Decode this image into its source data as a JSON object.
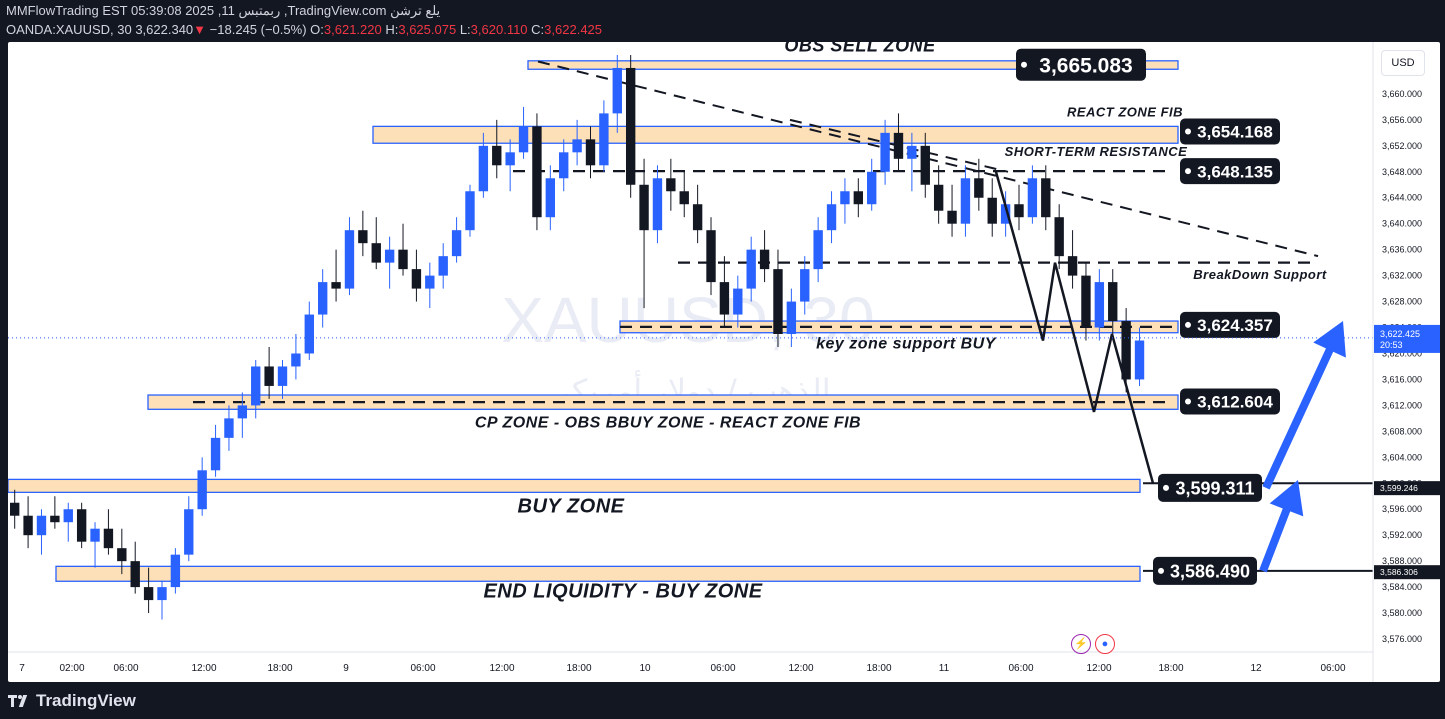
{
  "header": {
    "line1": "MMFlowTrading EST 05:39:08 2025 ,11 ربمتبس ,TradingView.com يلع ترشن",
    "symbol": "OANDA:XAUUSD, 30",
    "last": "3,622.340",
    "change_arrow": "▼",
    "change": "−18.245 (−0.5%)",
    "o_label": "O:",
    "o": "3,621.220",
    "h_label": "H:",
    "h": "3,625.075",
    "l_label": "L:",
    "l": "3,620.110",
    "c_label": "C:",
    "c": "3,622.425"
  },
  "footer": {
    "brand": "TradingView"
  },
  "chart_data": {
    "type": "candlestick",
    "title": "",
    "watermark_symbol": "XAUUSD, 30",
    "watermark_name": "الذهب / دولار أمريكي",
    "currency_button": "USD",
    "ylim": [
      3574,
      3668
    ],
    "y_ticks": [
      "3,576.000",
      "3,580.000",
      "3,584.000",
      "3,588.000",
      "3,592.000",
      "3,596.000",
      "3,600.000",
      "3,604.000",
      "3,608.000",
      "3,612.000",
      "3,616.000",
      "3,620.000",
      "3,624.000",
      "3,628.000",
      "3,632.000",
      "3,636.000",
      "3,640.000",
      "3,644.000",
      "3,648.000",
      "3,652.000",
      "3,656.000",
      "3,660.000",
      "3,664.000"
    ],
    "x_ticks": [
      "7",
      "02:00",
      "06:00",
      "12:00",
      "18:00",
      "9",
      "06:00",
      "12:00",
      "18:00",
      "10",
      "06:00",
      "12:00",
      "18:00",
      "11",
      "06:00",
      "12:00",
      "18:00",
      "12",
      "06:00"
    ],
    "bull_color": "#2962ff",
    "bear_color": "#131722",
    "candles": [
      [
        3597,
        3599,
        3593,
        3595
      ],
      [
        3595,
        3598,
        3590,
        3592
      ],
      [
        3592,
        3596,
        3589,
        3595
      ],
      [
        3595,
        3598,
        3593,
        3594
      ],
      [
        3594,
        3597,
        3591,
        3596
      ],
      [
        3596,
        3597,
        3590,
        3591
      ],
      [
        3591,
        3594,
        3587,
        3593
      ],
      [
        3593,
        3596,
        3589,
        3590
      ],
      [
        3590,
        3593,
        3586,
        3588
      ],
      [
        3588,
        3591,
        3583,
        3584
      ],
      [
        3584,
        3587,
        3580,
        3582
      ],
      [
        3582,
        3585,
        3579,
        3584
      ],
      [
        3584,
        3590,
        3583,
        3589
      ],
      [
        3589,
        3598,
        3588,
        3596
      ],
      [
        3596,
        3604,
        3595,
        3602
      ],
      [
        3602,
        3609,
        3601,
        3607
      ],
      [
        3607,
        3612,
        3605,
        3610
      ],
      [
        3610,
        3614,
        3607,
        3612
      ],
      [
        3612,
        3619,
        3610,
        3618
      ],
      [
        3618,
        3621,
        3613,
        3615
      ],
      [
        3615,
        3619,
        3613,
        3618
      ],
      [
        3618,
        3623,
        3616,
        3620
      ],
      [
        3620,
        3628,
        3619,
        3626
      ],
      [
        3626,
        3633,
        3624,
        3631
      ],
      [
        3631,
        3636,
        3628,
        3630
      ],
      [
        3630,
        3641,
        3629,
        3639
      ],
      [
        3639,
        3642,
        3635,
        3637
      ],
      [
        3637,
        3641,
        3633,
        3634
      ],
      [
        3634,
        3638,
        3630,
        3636
      ],
      [
        3636,
        3640,
        3632,
        3633
      ],
      [
        3633,
        3636,
        3628,
        3630
      ],
      [
        3630,
        3634,
        3627,
        3632
      ],
      [
        3632,
        3637,
        3630,
        3635
      ],
      [
        3635,
        3641,
        3634,
        3639
      ],
      [
        3639,
        3646,
        3638,
        3645
      ],
      [
        3645,
        3654,
        3644,
        3652
      ],
      [
        3652,
        3656,
        3647,
        3649
      ],
      [
        3649,
        3653,
        3645,
        3651
      ],
      [
        3651,
        3658,
        3650,
        3655
      ],
      [
        3655,
        3657,
        3639,
        3641
      ],
      [
        3641,
        3649,
        3639,
        3647
      ],
      [
        3647,
        3653,
        3645,
        3651
      ],
      [
        3651,
        3656,
        3649,
        3653
      ],
      [
        3653,
        3655,
        3647,
        3649
      ],
      [
        3649,
        3659,
        3648,
        3657
      ],
      [
        3657,
        3666,
        3654,
        3664
      ],
      [
        3664,
        3666,
        3644,
        3646
      ],
      [
        3646,
        3650,
        3627,
        3639
      ],
      [
        3639,
        3649,
        3637,
        3647
      ],
      [
        3647,
        3650,
        3642,
        3645
      ],
      [
        3645,
        3648,
        3641,
        3643
      ],
      [
        3643,
        3646,
        3637,
        3639
      ],
      [
        3639,
        3641,
        3629,
        3631
      ],
      [
        3631,
        3635,
        3624,
        3626
      ],
      [
        3626,
        3632,
        3624,
        3630
      ],
      [
        3630,
        3638,
        3628,
        3636
      ],
      [
        3636,
        3639,
        3631,
        3633
      ],
      [
        3633,
        3636,
        3621,
        3623
      ],
      [
        3623,
        3630,
        3621,
        3628
      ],
      [
        3628,
        3635,
        3626,
        3633
      ],
      [
        3633,
        3641,
        3631,
        3639
      ],
      [
        3639,
        3645,
        3637,
        3643
      ],
      [
        3643,
        3647,
        3640,
        3645
      ],
      [
        3645,
        3647,
        3641,
        3643
      ],
      [
        3643,
        3650,
        3642,
        3648
      ],
      [
        3648,
        3656,
        3646,
        3654
      ],
      [
        3654,
        3657,
        3648,
        3650
      ],
      [
        3650,
        3654,
        3645,
        3652
      ],
      [
        3652,
        3654,
        3644,
        3646
      ],
      [
        3646,
        3649,
        3640,
        3642
      ],
      [
        3642,
        3646,
        3638,
        3640
      ],
      [
        3640,
        3649,
        3638,
        3647
      ],
      [
        3647,
        3650,
        3642,
        3644
      ],
      [
        3644,
        3647,
        3638,
        3640
      ],
      [
        3640,
        3645,
        3638,
        3643
      ],
      [
        3643,
        3646,
        3639,
        3641
      ],
      [
        3641,
        3649,
        3640,
        3647
      ],
      [
        3647,
        3649,
        3639,
        3641
      ],
      [
        3641,
        3643,
        3633,
        3635
      ],
      [
        3635,
        3639,
        3630,
        3632
      ],
      [
        3632,
        3634,
        3622,
        3624
      ],
      [
        3624,
        3633,
        3622,
        3631
      ],
      [
        3631,
        3633,
        3623,
        3625
      ],
      [
        3625,
        3627,
        3614,
        3616
      ],
      [
        3616,
        3624,
        3615,
        3622
      ]
    ],
    "zones": [
      {
        "label": "OBS SELL ZONE",
        "price": "3,665.083",
        "lo": 3663.8,
        "hi": 3665.1,
        "dashed": false,
        "label_side": "above"
      },
      {
        "label": "REACT ZONE FIB",
        "price": "3,654.168",
        "lo": 3652.4,
        "hi": 3655.0,
        "dashed": false,
        "label_side": "above"
      },
      {
        "label": "SHORT-TERM RESISTANCE",
        "price": "3,648.135",
        "lo": 3648.1,
        "hi": 3648.1,
        "dashed": true,
        "label_side": "above"
      },
      {
        "label": "BreakDown Support",
        "price": "",
        "lo": 3634.0,
        "hi": 3634.0,
        "dashed": true,
        "label_side": "right"
      },
      {
        "label": "key zone support BUY",
        "price": "3,624.357",
        "lo": 3623.2,
        "hi": 3625.0,
        "dashed": true,
        "label_side": "below"
      },
      {
        "label": "CP ZONE - OBS BBUY ZONE - REACT ZONE FIB",
        "price": "3,612.604",
        "lo": 3611.4,
        "hi": 3613.6,
        "dashed": true,
        "label_side": "below"
      },
      {
        "label": "BUY ZONE",
        "price": "3,599.311",
        "lo": 3598.6,
        "hi": 3600.6,
        "dashed": false,
        "label_side": "below"
      },
      {
        "label": "END LIQUIDITY - BUY ZONE",
        "price": "3,586.490",
        "lo": 3584.9,
        "hi": 3587.2,
        "dashed": false,
        "label_side": "below"
      }
    ],
    "trendlines": [
      {
        "from": [
          46,
          3665
        ],
        "to": [
          120,
          3634
        ],
        "dashed": true
      },
      {
        "from": [
          75,
          3654
        ],
        "to": [
          96,
          3648
        ],
        "dashed": true
      }
    ],
    "current_price": {
      "value": "3,622.425",
      "countdown": "20:53"
    },
    "scale_tags": [
      {
        "value": "3,599.246"
      },
      {
        "value": "3,586.306"
      }
    ],
    "projection_path": [
      [
        96,
        3648
      ],
      [
        100,
        3625
      ],
      [
        102,
        3634
      ],
      [
        106,
        3612
      ],
      [
        109,
        3624
      ],
      [
        115,
        3600
      ]
    ]
  }
}
